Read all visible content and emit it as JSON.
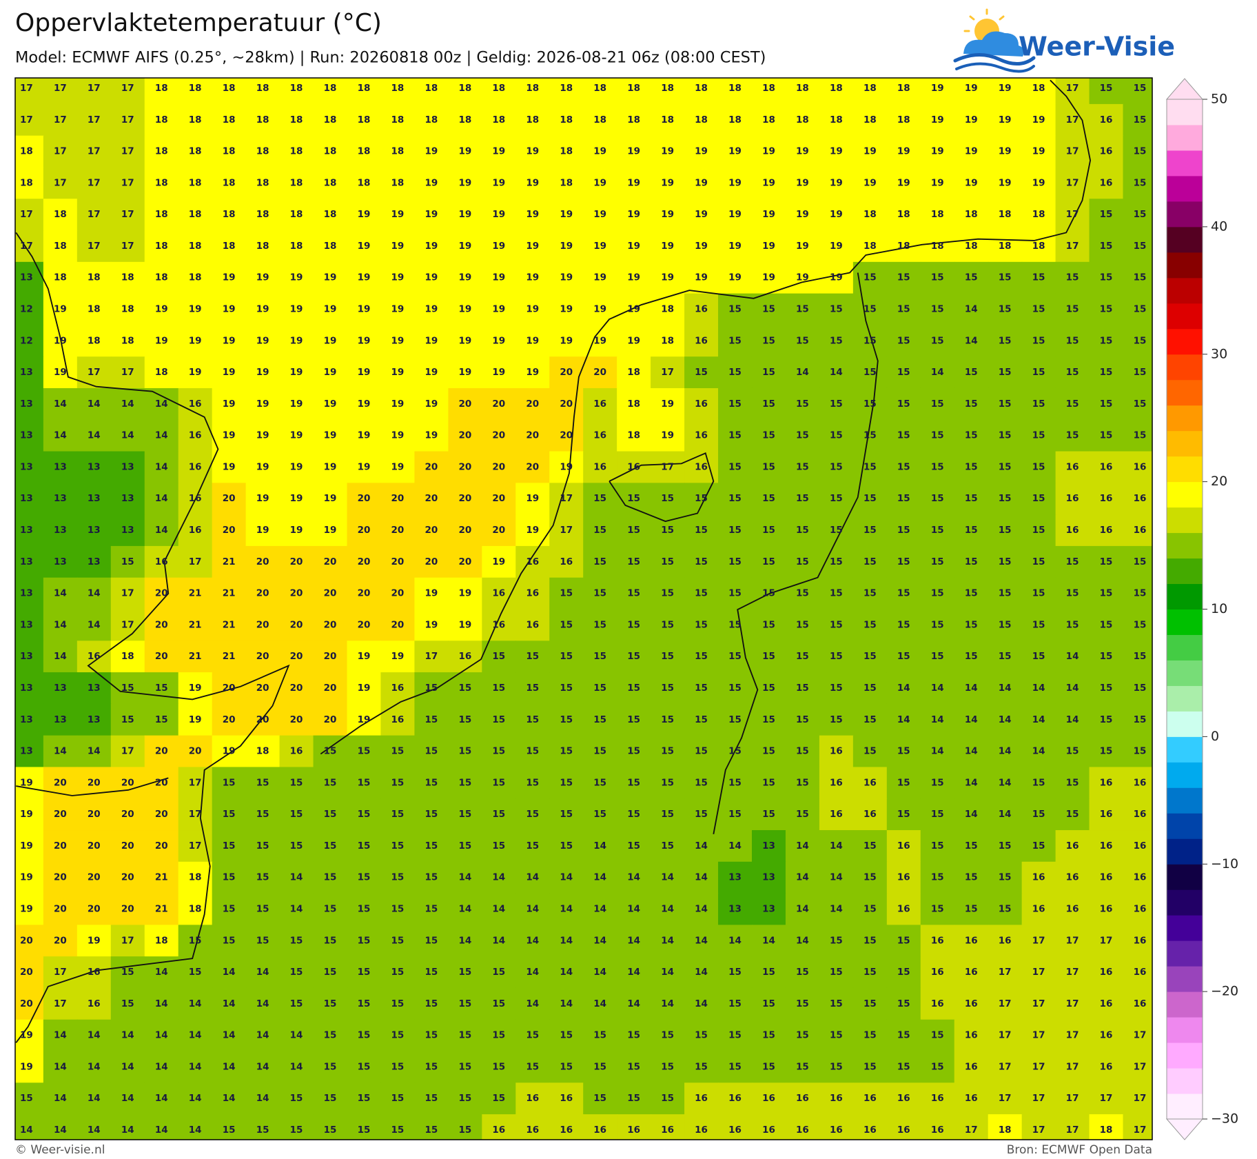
{
  "header": {
    "title": "Oppervlaktetemperatuur (°C)",
    "subtitle": "Model: ECMWF AIFS (0.25°, ~28km)  |  Run: 20260818 00z  |  Geldig: 2026-08-21 06z (08:00 CEST)"
  },
  "logo": {
    "text": "Weer-Visie"
  },
  "map": {
    "rows": [
      [
        17,
        17,
        17,
        17,
        18,
        18,
        18,
        18,
        18,
        18,
        18,
        18,
        18,
        18,
        18,
        18,
        18,
        18,
        18,
        18,
        18,
        18,
        18,
        18,
        18,
        18,
        18,
        19,
        19,
        19,
        18,
        17,
        15,
        15
      ],
      [
        17,
        17,
        17,
        17,
        18,
        18,
        18,
        18,
        18,
        18,
        18,
        18,
        18,
        18,
        18,
        18,
        18,
        18,
        18,
        18,
        18,
        18,
        18,
        18,
        18,
        18,
        18,
        19,
        19,
        19,
        19,
        17,
        16,
        15
      ],
      [
        18,
        17,
        17,
        17,
        18,
        18,
        18,
        18,
        18,
        18,
        18,
        18,
        19,
        19,
        19,
        19,
        18,
        19,
        19,
        19,
        19,
        19,
        19,
        19,
        19,
        19,
        19,
        19,
        19,
        19,
        19,
        17,
        16,
        15
      ],
      [
        18,
        17,
        17,
        17,
        18,
        18,
        18,
        18,
        18,
        18,
        18,
        18,
        19,
        19,
        19,
        19,
        18,
        19,
        19,
        19,
        19,
        19,
        19,
        19,
        19,
        19,
        19,
        19,
        19,
        19,
        19,
        17,
        16,
        15
      ],
      [
        17,
        18,
        17,
        17,
        18,
        18,
        18,
        18,
        18,
        18,
        19,
        19,
        19,
        19,
        19,
        19,
        19,
        19,
        19,
        19,
        19,
        19,
        19,
        19,
        19,
        18,
        18,
        18,
        18,
        18,
        18,
        17,
        15,
        15
      ],
      [
        17,
        18,
        17,
        17,
        18,
        18,
        18,
        18,
        18,
        18,
        19,
        19,
        19,
        19,
        19,
        19,
        19,
        19,
        19,
        19,
        19,
        19,
        19,
        19,
        19,
        18,
        18,
        18,
        18,
        18,
        18,
        17,
        15,
        15
      ],
      [
        13,
        18,
        18,
        18,
        18,
        18,
        19,
        19,
        19,
        19,
        19,
        19,
        19,
        19,
        19,
        19,
        19,
        19,
        19,
        19,
        19,
        19,
        19,
        19,
        19,
        15,
        15,
        15,
        15,
        15,
        15,
        15,
        15,
        15
      ],
      [
        12,
        19,
        18,
        18,
        19,
        19,
        19,
        19,
        19,
        19,
        19,
        19,
        19,
        19,
        19,
        19,
        19,
        19,
        19,
        18,
        16,
        15,
        15,
        15,
        15,
        15,
        15,
        15,
        14,
        15,
        15,
        15,
        15,
        15
      ],
      [
        12,
        19,
        18,
        18,
        19,
        19,
        19,
        19,
        19,
        19,
        19,
        19,
        19,
        19,
        19,
        19,
        19,
        19,
        19,
        18,
        16,
        15,
        15,
        15,
        15,
        15,
        15,
        15,
        14,
        15,
        15,
        15,
        15,
        15
      ],
      [
        13,
        19,
        17,
        17,
        18,
        19,
        19,
        19,
        19,
        19,
        19,
        19,
        19,
        19,
        19,
        19,
        20,
        20,
        18,
        17,
        15,
        15,
        15,
        14,
        14,
        15,
        15,
        14,
        15,
        15,
        15,
        15,
        15,
        15
      ],
      [
        13,
        14,
        14,
        14,
        14,
        16,
        19,
        19,
        19,
        19,
        19,
        19,
        19,
        20,
        20,
        20,
        20,
        16,
        18,
        19,
        16,
        15,
        15,
        15,
        15,
        15,
        15,
        15,
        15,
        15,
        15,
        15,
        15,
        15
      ],
      [
        13,
        14,
        14,
        14,
        14,
        16,
        19,
        19,
        19,
        19,
        19,
        19,
        19,
        20,
        20,
        20,
        20,
        16,
        18,
        19,
        16,
        15,
        15,
        15,
        15,
        15,
        15,
        15,
        15,
        15,
        15,
        15,
        15,
        15
      ],
      [
        13,
        13,
        13,
        13,
        14,
        16,
        19,
        19,
        19,
        19,
        19,
        19,
        20,
        20,
        20,
        20,
        19,
        16,
        16,
        17,
        16,
        15,
        15,
        15,
        15,
        15,
        15,
        15,
        15,
        15,
        15,
        16,
        16,
        16
      ],
      [
        13,
        13,
        13,
        13,
        14,
        16,
        20,
        19,
        19,
        19,
        20,
        20,
        20,
        20,
        20,
        19,
        17,
        15,
        15,
        15,
        15,
        15,
        15,
        15,
        15,
        15,
        15,
        15,
        15,
        15,
        15,
        16,
        16,
        16
      ],
      [
        13,
        13,
        13,
        13,
        14,
        16,
        20,
        19,
        19,
        19,
        20,
        20,
        20,
        20,
        20,
        19,
        17,
        15,
        15,
        15,
        15,
        15,
        15,
        15,
        15,
        15,
        15,
        15,
        15,
        15,
        15,
        16,
        16,
        16
      ],
      [
        13,
        13,
        13,
        15,
        16,
        17,
        21,
        20,
        20,
        20,
        20,
        20,
        20,
        20,
        19,
        16,
        16,
        15,
        15,
        15,
        15,
        15,
        15,
        15,
        15,
        15,
        15,
        15,
        15,
        15,
        15,
        15,
        15,
        15
      ],
      [
        13,
        14,
        14,
        17,
        20,
        21,
        21,
        20,
        20,
        20,
        20,
        20,
        19,
        19,
        16,
        16,
        15,
        15,
        15,
        15,
        15,
        15,
        15,
        15,
        15,
        15,
        15,
        15,
        15,
        15,
        15,
        15,
        15,
        15
      ],
      [
        13,
        14,
        14,
        17,
        20,
        21,
        21,
        20,
        20,
        20,
        20,
        20,
        19,
        19,
        16,
        16,
        15,
        15,
        15,
        15,
        15,
        15,
        15,
        15,
        15,
        15,
        15,
        15,
        15,
        15,
        15,
        15,
        15,
        15
      ],
      [
        13,
        14,
        16,
        18,
        20,
        21,
        21,
        20,
        20,
        20,
        19,
        19,
        17,
        16,
        15,
        15,
        15,
        15,
        15,
        15,
        15,
        15,
        15,
        15,
        15,
        15,
        15,
        15,
        15,
        15,
        15,
        14,
        15,
        15
      ],
      [
        13,
        13,
        13,
        15,
        15,
        19,
        20,
        20,
        20,
        20,
        19,
        16,
        15,
        15,
        15,
        15,
        15,
        15,
        15,
        15,
        15,
        15,
        15,
        15,
        15,
        15,
        14,
        14,
        14,
        14,
        14,
        14,
        15,
        15
      ],
      [
        13,
        13,
        13,
        15,
        15,
        19,
        20,
        20,
        20,
        20,
        19,
        16,
        15,
        15,
        15,
        15,
        15,
        15,
        15,
        15,
        15,
        15,
        15,
        15,
        15,
        15,
        14,
        14,
        14,
        14,
        14,
        14,
        15,
        15
      ],
      [
        13,
        14,
        14,
        17,
        20,
        20,
        19,
        18,
        16,
        15,
        15,
        15,
        15,
        15,
        15,
        15,
        15,
        15,
        15,
        15,
        15,
        15,
        15,
        15,
        16,
        15,
        15,
        14,
        14,
        14,
        14,
        15,
        15,
        15
      ],
      [
        19,
        20,
        20,
        20,
        20,
        17,
        15,
        15,
        15,
        15,
        15,
        15,
        15,
        15,
        15,
        15,
        15,
        15,
        15,
        15,
        15,
        15,
        15,
        15,
        16,
        16,
        15,
        15,
        14,
        14,
        15,
        15,
        16,
        16
      ],
      [
        19,
        20,
        20,
        20,
        20,
        17,
        15,
        15,
        15,
        15,
        15,
        15,
        15,
        15,
        15,
        15,
        15,
        15,
        15,
        15,
        15,
        15,
        15,
        15,
        16,
        16,
        15,
        15,
        14,
        14,
        15,
        15,
        16,
        16
      ],
      [
        19,
        20,
        20,
        20,
        20,
        17,
        15,
        15,
        15,
        15,
        15,
        15,
        15,
        15,
        15,
        15,
        15,
        14,
        15,
        15,
        14,
        14,
        13,
        14,
        14,
        15,
        16,
        15,
        15,
        15,
        15,
        16,
        16,
        16
      ],
      [
        19,
        20,
        20,
        20,
        21,
        18,
        15,
        15,
        14,
        15,
        15,
        15,
        15,
        14,
        14,
        14,
        14,
        14,
        14,
        14,
        14,
        13,
        13,
        14,
        14,
        15,
        16,
        15,
        15,
        15,
        16,
        16,
        16,
        16
      ],
      [
        19,
        20,
        20,
        20,
        21,
        18,
        15,
        15,
        14,
        15,
        15,
        15,
        15,
        14,
        14,
        14,
        14,
        14,
        14,
        14,
        14,
        13,
        13,
        14,
        14,
        15,
        16,
        15,
        15,
        15,
        16,
        16,
        16,
        16
      ],
      [
        20,
        20,
        19,
        17,
        18,
        15,
        15,
        15,
        15,
        15,
        15,
        15,
        15,
        14,
        14,
        14,
        14,
        14,
        14,
        14,
        14,
        14,
        14,
        14,
        15,
        15,
        15,
        16,
        16,
        16,
        17,
        17,
        17,
        16
      ],
      [
        20,
        17,
        16,
        15,
        14,
        15,
        14,
        14,
        15,
        15,
        15,
        15,
        15,
        15,
        15,
        14,
        14,
        14,
        14,
        14,
        14,
        15,
        15,
        15,
        15,
        15,
        15,
        16,
        16,
        17,
        17,
        17,
        16,
        16
      ],
      [
        20,
        17,
        16,
        15,
        14,
        14,
        14,
        14,
        15,
        15,
        15,
        15,
        15,
        15,
        15,
        14,
        14,
        14,
        14,
        14,
        14,
        15,
        15,
        15,
        15,
        15,
        15,
        16,
        16,
        17,
        17,
        17,
        16,
        16
      ],
      [
        19,
        14,
        14,
        14,
        14,
        14,
        14,
        14,
        14,
        15,
        15,
        15,
        15,
        15,
        15,
        15,
        15,
        15,
        15,
        15,
        15,
        15,
        15,
        15,
        15,
        15,
        15,
        15,
        16,
        17,
        17,
        17,
        16,
        17
      ],
      [
        19,
        14,
        14,
        14,
        14,
        14,
        14,
        14,
        14,
        15,
        15,
        15,
        15,
        15,
        15,
        15,
        15,
        15,
        15,
        15,
        15,
        15,
        15,
        15,
        15,
        15,
        15,
        15,
        16,
        17,
        17,
        17,
        16,
        17
      ],
      [
        15,
        14,
        14,
        14,
        14,
        14,
        14,
        14,
        15,
        15,
        15,
        15,
        15,
        15,
        15,
        16,
        16,
        15,
        15,
        15,
        16,
        16,
        16,
        16,
        16,
        16,
        16,
        16,
        16,
        17,
        17,
        17,
        17,
        17
      ],
      [
        14,
        14,
        14,
        14,
        14,
        14,
        15,
        15,
        15,
        15,
        15,
        15,
        15,
        15,
        16,
        16,
        16,
        16,
        16,
        16,
        16,
        16,
        16,
        16,
        16,
        16,
        16,
        16,
        17,
        18,
        17,
        17,
        18,
        17
      ]
    ]
  },
  "legend": {
    "range": [
      -30,
      50
    ],
    "ticks": [
      50,
      40,
      30,
      20,
      10,
      0,
      {
        "value": -10,
        "label": "−10"
      },
      {
        "value": -20,
        "label": "−20"
      },
      {
        "value": -30,
        "label": "−30"
      }
    ],
    "colors": [
      "#ffeeff",
      "#ffccff",
      "#ffaaff",
      "#ee88ee",
      "#cc66cc",
      "#9944bb",
      "#6622aa",
      "#440099",
      "#220066",
      "#110044",
      "#002288",
      "#0044aa",
      "#0077cc",
      "#00aaee",
      "#33ccff",
      "#ccffee",
      "#aaeeaa",
      "#77dd77",
      "#44cc44",
      "#00c000",
      "#009900",
      "#44aa00",
      "#88c400",
      "#ccdd00",
      "#ffff00",
      "#ffdd00",
      "#ffbb00",
      "#ff9900",
      "#ff6600",
      "#ff4400",
      "#ff1100",
      "#dd0000",
      "#bb0000",
      "#880000",
      "#550022",
      "#880066",
      "#bb0099",
      "#ee44cc",
      "#ffaadd",
      "#ffddf0"
    ]
  },
  "footer": {
    "left": "© Weer-visie.nl",
    "right": "Bron: ECMWF Open Data"
  }
}
